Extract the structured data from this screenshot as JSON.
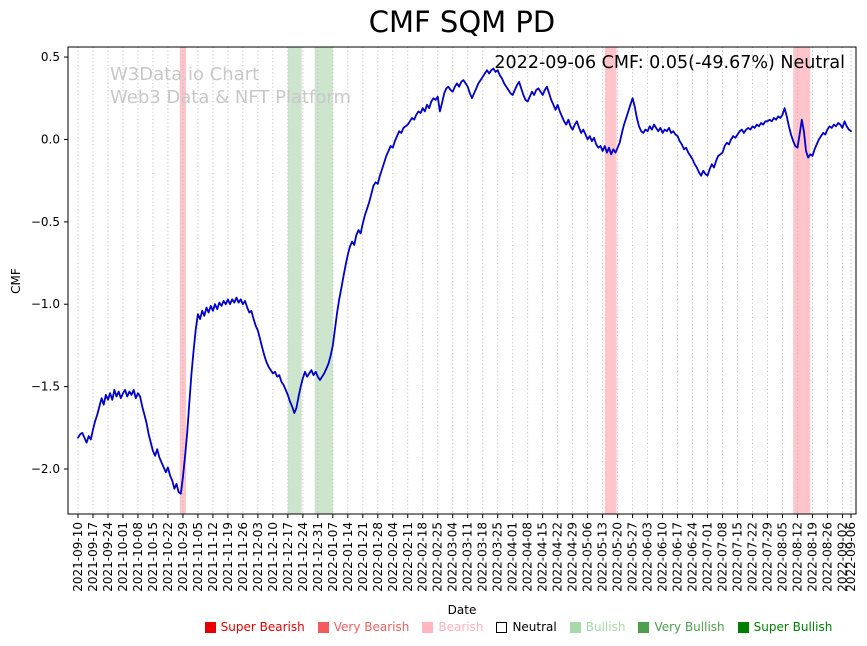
{
  "title": "CMF SQM PD",
  "annotation": "2022-09-06 CMF: 0.05(-49.67%) Neutral",
  "watermark": {
    "line1": "W3Data.io Chart",
    "line2": "Web3 Data & NFT Platform"
  },
  "chart_data": {
    "type": "line",
    "title": "CMF SQM PD",
    "xlabel": "Date",
    "ylabel": "CMF",
    "series_name": "CMF",
    "line_color": "#0000cc",
    "grid": "vertical-dotted",
    "legend_position": "bottom",
    "x_start_date": "2021-09-10",
    "x_end_date": "2022-09-06",
    "x_tick_days": [
      0,
      7,
      14,
      21,
      28,
      35,
      42,
      49,
      56,
      63,
      70,
      77,
      84,
      91,
      98,
      105,
      112,
      119,
      126,
      133,
      140,
      147,
      154,
      161,
      168,
      175,
      182,
      189,
      196,
      203,
      210,
      217,
      224,
      231,
      238,
      245,
      252,
      259,
      266,
      273,
      280,
      287,
      294,
      301,
      308,
      315,
      322,
      329,
      336,
      343,
      350,
      357,
      361
    ],
    "x_tick_labels": [
      "2021-09-10",
      "2021-09-17",
      "2021-09-24",
      "2021-10-01",
      "2021-10-08",
      "2021-10-15",
      "2021-10-22",
      "2021-10-29",
      "2021-11-05",
      "2021-11-12",
      "2021-11-19",
      "2021-11-26",
      "2021-12-03",
      "2021-12-10",
      "2021-12-17",
      "2021-12-24",
      "2021-12-31",
      "2022-01-07",
      "2022-01-14",
      "2022-01-21",
      "2022-01-28",
      "2022-02-04",
      "2022-02-11",
      "2022-02-18",
      "2022-02-25",
      "2022-03-04",
      "2022-03-11",
      "2022-03-18",
      "2022-03-25",
      "2022-04-01",
      "2022-04-08",
      "2022-04-15",
      "2022-04-22",
      "2022-04-29",
      "2022-05-06",
      "2022-05-13",
      "2022-05-20",
      "2022-05-27",
      "2022-06-03",
      "2022-06-10",
      "2022-06-17",
      "2022-06-24",
      "2022-07-01",
      "2022-07-08",
      "2022-07-15",
      "2022-07-22",
      "2022-07-29",
      "2022-08-05",
      "2022-08-12",
      "2022-08-19",
      "2022-08-26",
      "2022-09-02",
      "2022-09-06"
    ],
    "y_ticks": [
      {
        "value": 0.5,
        "label": "0.5"
      },
      {
        "value": 0.0,
        "label": "0.0"
      },
      {
        "value": -0.5,
        "label": "−0.5"
      },
      {
        "value": -1.0,
        "label": "−1.0"
      },
      {
        "value": -1.5,
        "label": "−1.5"
      },
      {
        "value": -2.0,
        "label": "−2.0"
      }
    ],
    "y_render_range": [
      -2.273,
      0.561
    ],
    "latest": {
      "date": "2022-09-06",
      "cmf": 0.05,
      "change_pct": -49.67,
      "signal": "Neutral"
    },
    "values_daily": [
      -1.81,
      -1.79,
      -1.78,
      -1.81,
      -1.84,
      -1.8,
      -1.82,
      -1.76,
      -1.71,
      -1.67,
      -1.62,
      -1.57,
      -1.61,
      -1.55,
      -1.58,
      -1.54,
      -1.58,
      -1.52,
      -1.56,
      -1.53,
      -1.57,
      -1.54,
      -1.52,
      -1.56,
      -1.53,
      -1.55,
      -1.52,
      -1.57,
      -1.54,
      -1.56,
      -1.62,
      -1.67,
      -1.72,
      -1.79,
      -1.84,
      -1.89,
      -1.92,
      -1.88,
      -1.93,
      -1.96,
      -1.99,
      -2.02,
      -1.99,
      -2.04,
      -2.07,
      -2.12,
      -2.09,
      -2.14,
      -2.15,
      -2.05,
      -1.92,
      -1.78,
      -1.6,
      -1.42,
      -1.28,
      -1.15,
      -1.06,
      -1.09,
      -1.04,
      -1.07,
      -1.02,
      -1.05,
      -1.01,
      -1.04,
      -1.0,
      -1.03,
      -0.99,
      -1.01,
      -0.98,
      -1.0,
      -0.97,
      -1.0,
      -0.97,
      -0.99,
      -0.96,
      -0.99,
      -0.97,
      -1.0,
      -0.98,
      -1.02,
      -1.05,
      -1.04,
      -1.09,
      -1.13,
      -1.16,
      -1.21,
      -1.26,
      -1.31,
      -1.35,
      -1.38,
      -1.4,
      -1.42,
      -1.41,
      -1.44,
      -1.43,
      -1.47,
      -1.49,
      -1.52,
      -1.55,
      -1.59,
      -1.62,
      -1.66,
      -1.63,
      -1.56,
      -1.5,
      -1.45,
      -1.41,
      -1.44,
      -1.42,
      -1.4,
      -1.43,
      -1.41,
      -1.44,
      -1.46,
      -1.44,
      -1.42,
      -1.39,
      -1.36,
      -1.31,
      -1.25,
      -1.15,
      -1.05,
      -0.97,
      -0.9,
      -0.83,
      -0.76,
      -0.7,
      -0.65,
      -0.62,
      -0.64,
      -0.58,
      -0.55,
      -0.57,
      -0.51,
      -0.46,
      -0.42,
      -0.38,
      -0.33,
      -0.28,
      -0.26,
      -0.27,
      -0.22,
      -0.18,
      -0.14,
      -0.1,
      -0.07,
      -0.04,
      -0.05,
      -0.01,
      0.02,
      0.05,
      0.04,
      0.07,
      0.08,
      0.09,
      0.11,
      0.13,
      0.12,
      0.15,
      0.17,
      0.16,
      0.19,
      0.17,
      0.21,
      0.19,
      0.23,
      0.25,
      0.24,
      0.26,
      0.17,
      0.22,
      0.28,
      0.31,
      0.32,
      0.3,
      0.29,
      0.32,
      0.34,
      0.32,
      0.35,
      0.36,
      0.34,
      0.32,
      0.28,
      0.25,
      0.28,
      0.31,
      0.34,
      0.36,
      0.38,
      0.4,
      0.42,
      0.4,
      0.42,
      0.43,
      0.41,
      0.42,
      0.39,
      0.37,
      0.34,
      0.32,
      0.3,
      0.28,
      0.27,
      0.3,
      0.33,
      0.35,
      0.31,
      0.27,
      0.24,
      0.23,
      0.26,
      0.29,
      0.27,
      0.3,
      0.31,
      0.29,
      0.27,
      0.3,
      0.32,
      0.28,
      0.24,
      0.21,
      0.18,
      0.21,
      0.17,
      0.14,
      0.11,
      0.09,
      0.12,
      0.08,
      0.06,
      0.09,
      0.11,
      0.07,
      0.04,
      0.06,
      0.03,
      0.0,
      0.02,
      -0.01,
      0.01,
      -0.03,
      -0.05,
      -0.04,
      -0.07,
      -0.04,
      -0.08,
      -0.05,
      -0.09,
      -0.06,
      -0.08,
      -0.05,
      -0.02,
      0.04,
      0.09,
      0.13,
      0.17,
      0.21,
      0.25,
      0.2,
      0.13,
      0.08,
      0.05,
      0.04,
      0.06,
      0.05,
      0.08,
      0.06,
      0.09,
      0.07,
      0.05,
      0.07,
      0.04,
      0.06,
      0.05,
      0.07,
      0.04,
      0.05,
      0.03,
      0.02,
      -0.01,
      -0.03,
      -0.06,
      -0.05,
      -0.08,
      -0.1,
      -0.12,
      -0.15,
      -0.17,
      -0.2,
      -0.22,
      -0.19,
      -0.21,
      -0.22,
      -0.18,
      -0.15,
      -0.17,
      -0.13,
      -0.1,
      -0.09,
      -0.08,
      -0.04,
      -0.02,
      -0.03,
      0.0,
      0.02,
      0.01,
      0.03,
      0.05,
      0.06,
      0.04,
      0.06,
      0.07,
      0.06,
      0.08,
      0.07,
      0.09,
      0.08,
      0.1,
      0.09,
      0.11,
      0.11,
      0.12,
      0.11,
      0.13,
      0.12,
      0.14,
      0.13,
      0.15,
      0.19,
      0.14,
      0.08,
      0.03,
      -0.01,
      -0.04,
      -0.05,
      0.03,
      0.12,
      0.05,
      -0.07,
      -0.11,
      -0.09,
      -0.1,
      -0.06,
      -0.03,
      0.0,
      0.02,
      0.04,
      0.03,
      0.06,
      0.08,
      0.07,
      0.09,
      0.08,
      0.1,
      0.09,
      0.07,
      0.11,
      0.08,
      0.06,
      0.05
    ],
    "signal_bands": [
      {
        "signal": "Bearish",
        "start_day": 47.5,
        "end_day": 50.5,
        "color": "rgba(255,150,160,0.55)"
      },
      {
        "signal": "Bullish",
        "start_day": 98,
        "end_day": 104.5,
        "color": "rgba(130,190,130,0.4)"
      },
      {
        "signal": "Bullish",
        "start_day": 110.5,
        "end_day": 119,
        "color": "rgba(130,190,130,0.4)"
      },
      {
        "signal": "Bearish",
        "start_day": 246,
        "end_day": 251.5,
        "color": "rgba(255,150,160,0.55)"
      },
      {
        "signal": "Bearish",
        "start_day": 334,
        "end_day": 342,
        "color": "rgba(255,150,160,0.55)"
      }
    ],
    "legend": [
      {
        "label": "Super Bearish",
        "color": "#e60000",
        "text_color": "#e60000"
      },
      {
        "label": "Very Bearish",
        "color": "#f25c5c",
        "text_color": "#f25c5c"
      },
      {
        "label": "Bearish",
        "color": "#ffb6c1",
        "text_color": "#ffb0bc"
      },
      {
        "label": "Neutral",
        "color": "#ffffff",
        "text_color": "#000000",
        "border": "#000000"
      },
      {
        "label": "Bullish",
        "color": "#a9d8a9",
        "text_color": "#a9d8a9"
      },
      {
        "label": "Very Bullish",
        "color": "#4d9e4d",
        "text_color": "#4d9e4d"
      },
      {
        "label": "Super Bullish",
        "color": "#007f00",
        "text_color": "#007f00"
      }
    ]
  }
}
